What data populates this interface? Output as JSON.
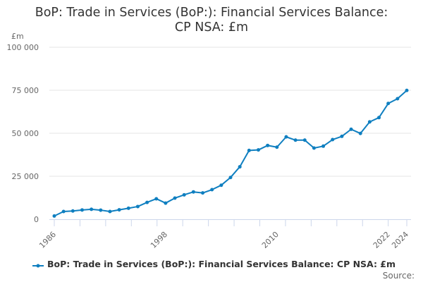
{
  "title_line1": "BoP: Trade in Services (BoP:): Financial Services Balance:",
  "title_line2": "CP NSA: £m",
  "unit_label": "£m",
  "legend_label": "BoP: Trade in Services (BoP:): Financial Services Balance: CP NSA: £m",
  "source_label": "Source:",
  "series_color": "#0f7fc0",
  "chart_data": {
    "type": "line",
    "title": "BoP: Trade in Services (BoP:): Financial Services Balance: CP NSA: £m",
    "xlabel": "",
    "ylabel": "£m",
    "ylim": [
      0,
      100000
    ],
    "yticks": [
      0,
      25000,
      50000,
      75000,
      100000
    ],
    "ytick_labels": [
      "0",
      "25 000",
      "50 000",
      "75 000",
      "100 000"
    ],
    "xtick_labels": [
      "1986",
      "1998",
      "2010",
      "2022",
      "2024"
    ],
    "grid": true,
    "legend_position": "bottom",
    "x": [
      1986,
      1987,
      1988,
      1989,
      1990,
      1991,
      1992,
      1993,
      1994,
      1995,
      1996,
      1997,
      1998,
      1999,
      2000,
      2001,
      2002,
      2003,
      2004,
      2005,
      2006,
      2007,
      2008,
      2009,
      2010,
      2011,
      2012,
      2013,
      2014,
      2015,
      2016,
      2017,
      2018,
      2019,
      2020,
      2021,
      2022,
      2023,
      2024
    ],
    "series": [
      {
        "name": "BoP: Trade in Services (BoP:): Financial Services Balance: CP NSA: £m",
        "values": [
          1900,
          4500,
          4800,
          5400,
          5800,
          5300,
          4500,
          5500,
          6400,
          7400,
          9800,
          11900,
          9400,
          12300,
          14200,
          15900,
          15300,
          17200,
          19800,
          24300,
          30500,
          40000,
          40300,
          42900,
          41900,
          47900,
          46000,
          46000,
          41400,
          42500,
          46300,
          48200,
          52300,
          49900,
          56600,
          59100,
          67300,
          70100,
          74900
        ]
      }
    ]
  }
}
